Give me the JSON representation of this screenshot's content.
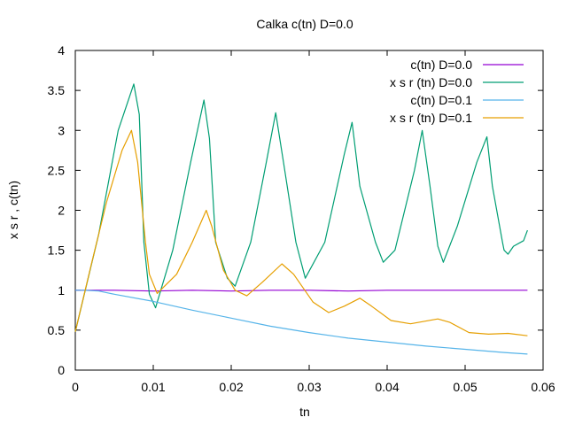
{
  "chart_data": {
    "type": "line",
    "title": "Calka c(tn) D=0.0",
    "xlabel": "tn",
    "ylabel": "x s r , c(tn)",
    "xlim": [
      0,
      0.06
    ],
    "ylim": [
      0,
      4
    ],
    "xticks": [
      0,
      0.01,
      0.02,
      0.03,
      0.04,
      0.05,
      0.06
    ],
    "xtick_labels": [
      "0",
      "0.01",
      "0.02",
      "0.03",
      "0.04",
      "0.05",
      "0.06"
    ],
    "yticks": [
      0,
      0.5,
      1,
      1.5,
      2,
      2.5,
      3,
      3.5,
      4
    ],
    "ytick_labels": [
      "0",
      "0.5",
      "1",
      "1.5",
      "2",
      "2.5",
      "3",
      "3.5",
      "4"
    ],
    "grid": false,
    "legend_position": "top-right",
    "series": [
      {
        "name": "c(tn) D=0.0",
        "color": "#9400d3",
        "x": [
          0,
          0.001,
          0.005,
          0.01,
          0.015,
          0.02,
          0.025,
          0.03,
          0.035,
          0.04,
          0.045,
          0.05,
          0.055,
          0.058
        ],
        "y": [
          1.0,
          1.0,
          1.0,
          0.99,
          1.0,
          0.99,
          1.0,
          1.0,
          0.99,
          1.0,
          1.0,
          1.0,
          1.0,
          1.0
        ]
      },
      {
        "name": "x s r (tn) D=0.0",
        "color": "#009e73",
        "x": [
          0,
          0.003,
          0.0055,
          0.0075,
          0.0082,
          0.0088,
          0.0095,
          0.0103,
          0.0125,
          0.0148,
          0.0165,
          0.0172,
          0.018,
          0.0195,
          0.0205,
          0.0225,
          0.0245,
          0.0257,
          0.0267,
          0.0283,
          0.0295,
          0.032,
          0.0345,
          0.0355,
          0.0365,
          0.0385,
          0.0395,
          0.041,
          0.0435,
          0.0445,
          0.0455,
          0.0465,
          0.0472,
          0.049,
          0.0515,
          0.0528,
          0.0535,
          0.0548,
          0.055,
          0.0555,
          0.0562,
          0.0575,
          0.058
        ],
        "y": [
          0.48,
          1.7,
          3.0,
          3.58,
          3.2,
          1.6,
          0.95,
          0.78,
          1.5,
          2.6,
          3.38,
          2.9,
          1.6,
          1.15,
          1.05,
          1.6,
          2.6,
          3.22,
          2.6,
          1.6,
          1.15,
          1.6,
          2.7,
          3.1,
          2.3,
          1.6,
          1.35,
          1.5,
          2.5,
          3.0,
          2.3,
          1.55,
          1.35,
          1.8,
          2.6,
          2.92,
          2.3,
          1.6,
          1.5,
          1.45,
          1.55,
          1.62,
          1.75
        ]
      },
      {
        "name": "c(tn) D=0.1",
        "color": "#56b4e9",
        "x": [
          0,
          0.001,
          0.003,
          0.005,
          0.01,
          0.015,
          0.02,
          0.025,
          0.03,
          0.035,
          0.04,
          0.045,
          0.05,
          0.055,
          0.058
        ],
        "y": [
          1.0,
          1.0,
          0.99,
          0.95,
          0.86,
          0.75,
          0.65,
          0.55,
          0.47,
          0.4,
          0.35,
          0.3,
          0.26,
          0.22,
          0.2
        ]
      },
      {
        "name": "x s r (tn) D=0.1",
        "color": "#e69f00",
        "x": [
          0,
          0.002,
          0.004,
          0.006,
          0.0072,
          0.008,
          0.009,
          0.0095,
          0.0105,
          0.013,
          0.015,
          0.0168,
          0.0175,
          0.019,
          0.0205,
          0.022,
          0.024,
          0.0265,
          0.028,
          0.0305,
          0.0325,
          0.0345,
          0.0365,
          0.038,
          0.0405,
          0.043,
          0.0465,
          0.048,
          0.0505,
          0.053,
          0.0555,
          0.058
        ],
        "y": [
          0.48,
          1.3,
          2.1,
          2.75,
          3.0,
          2.6,
          1.6,
          1.2,
          0.96,
          1.2,
          1.6,
          2.0,
          1.8,
          1.25,
          1.0,
          0.93,
          1.1,
          1.33,
          1.2,
          0.85,
          0.72,
          0.8,
          0.9,
          0.8,
          0.62,
          0.58,
          0.64,
          0.6,
          0.47,
          0.45,
          0.46,
          0.43
        ]
      }
    ]
  }
}
